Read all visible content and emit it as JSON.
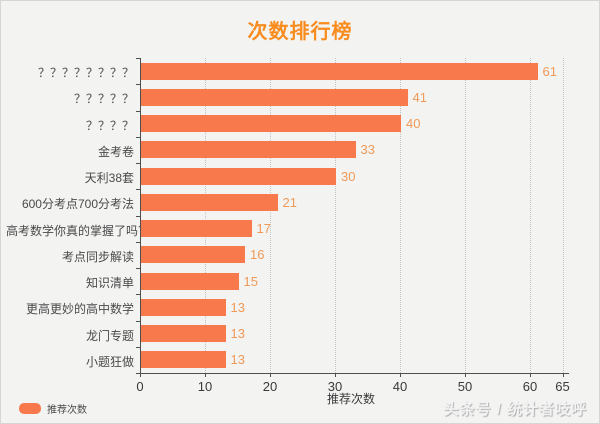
{
  "title": "次数排行榜",
  "watermark": "头条号 / 统计者吱呼",
  "colors": {
    "bar": "#f8794b",
    "value_label": "#ef9a58",
    "title": "#f98c1e"
  },
  "chart_data": {
    "type": "bar",
    "orientation": "horizontal",
    "title": "次数排行榜",
    "categories": [
      "？？？？？？？？",
      "？？？？？",
      "？？？？",
      "金考卷",
      "天利38套",
      "600分考点700分考法",
      "高考数学你真的掌握了吗？",
      "考点同步解读",
      "知识清单",
      "更高更妙的高中数学",
      "龙门专题",
      "小题狂做"
    ],
    "values": [
      61,
      41,
      40,
      33,
      30,
      21,
      17,
      16,
      15,
      13,
      13,
      13
    ],
    "xlabel": "推荐次数",
    "xlim": [
      0,
      65
    ],
    "xticks": [
      0,
      10,
      20,
      30,
      40,
      50,
      60,
      65
    ],
    "grid": "vertical dotted",
    "legend_label": "推荐次数",
    "legend_position": "bottom-left"
  }
}
